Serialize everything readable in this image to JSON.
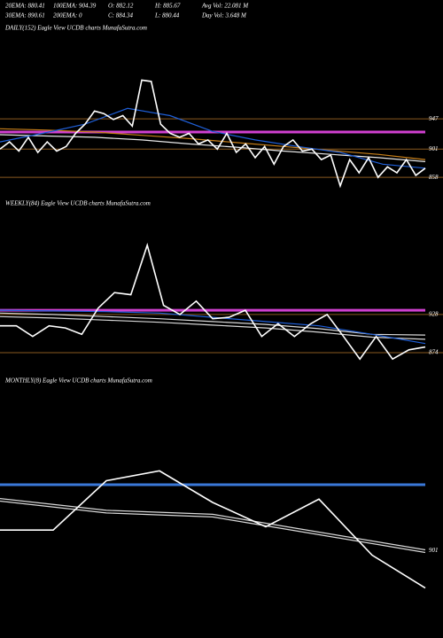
{
  "header": {
    "rows": [
      [
        "20EMA: 880.41",
        "100EMA: 904.39",
        "O: 882.12",
        "H: 885.67",
        "Avg Vol: 22.081 M"
      ],
      [
        "30EMA: 890.61",
        "200EMA: 0",
        "C: 884.34",
        "L: 880.44",
        "Day Vol: 3.648 M"
      ]
    ]
  },
  "chart_data": [
    {
      "type": "line",
      "title": "DAILY(152) Eagle  View  UCDB charts MunafaSutra.com",
      "ylim": [
        838,
        1074
      ],
      "yticks": [
        947,
        901,
        858
      ],
      "grid": true,
      "grid_color": "#8a5a20",
      "hlines": [
        {
          "value": 927,
          "color": "#d040d0"
        }
      ],
      "series": [
        {
          "color": "#c8801a",
          "values": [
            932,
            930,
            927,
            922,
            917,
            911,
            905,
            899,
            893,
            885
          ]
        },
        {
          "color": "#e8e8e8",
          "values": [
            923,
            921,
            919,
            915,
            909,
            904,
            898,
            893,
            888,
            882
          ]
        },
        {
          "color": "#1f5fd8",
          "values": [
            912,
            925,
            939,
            963,
            952,
            928,
            915,
            905,
            896,
            878,
            872
          ]
        },
        {
          "color": "#ffffff",
          "values": [
            901,
            912,
            898,
            919,
            896,
            912,
            898,
            905,
            925,
            939,
            959,
            955,
            946,
            952,
            936,
            1006,
            1004,
            939,
            925,
            919,
            925,
            909,
            915,
            901,
            925,
            896,
            909,
            888,
            905,
            878,
            905,
            915,
            898,
            901,
            885,
            892,
            845,
            885,
            865,
            888,
            858,
            874,
            865,
            885,
            861,
            872
          ]
        }
      ]
    },
    {
      "type": "line",
      "title": "WEEKLY(84) Eagle  View  UCDB charts MunafaSutra.com",
      "ylim": [
        859,
        1072
      ],
      "yticks": [
        928,
        874
      ],
      "grid": true,
      "grid_color": "#8a5a20",
      "hlines": [
        {
          "value": 934,
          "color": "#d040d0"
        }
      ],
      "series": [
        {
          "color": "#d8d8d8",
          "values": [
            930,
            928,
            925,
            922,
            918,
            914,
            908,
            900,
            899
          ]
        },
        {
          "color": "#d8d8d8",
          "values": [
            925,
            923,
            920,
            917,
            913,
            909,
            903,
            896,
            893
          ]
        },
        {
          "color": "#1f5fd8",
          "values": [
            934,
            933,
            932,
            930,
            924,
            918,
            912,
            900,
            887
          ]
        },
        {
          "color": "#ffffff",
          "values": [
            912,
            912,
            897,
            912,
            909,
            900,
            937,
            959,
            956,
            1026,
            941,
            928,
            947,
            922,
            924,
            934,
            897,
            915,
            897,
            915,
            928,
            897,
            865,
            897,
            865,
            878,
            882
          ]
        }
      ]
    },
    {
      "type": "line",
      "title": "MONTHLY(8) Eagle  View  UCDB charts MunafaSutra.com",
      "ylim": [
        795,
        1145
      ],
      "yticks": [
        901
      ],
      "grid": false,
      "grid_color": "#8a5a20",
      "hlines": [
        {
          "value": 1001,
          "color": "#3a78d8"
        }
      ],
      "series": [
        {
          "color": "#d8d8d8",
          "values": [
            980,
            962,
            956,
            929,
            902
          ]
        },
        {
          "color": "#d8d8d8",
          "values": [
            976,
            958,
            952,
            925,
            898
          ]
        },
        {
          "color": "#ffffff",
          "values": [
            932,
            932,
            1007,
            1022,
            974,
            937,
            979,
            894,
            844
          ]
        }
      ]
    }
  ]
}
